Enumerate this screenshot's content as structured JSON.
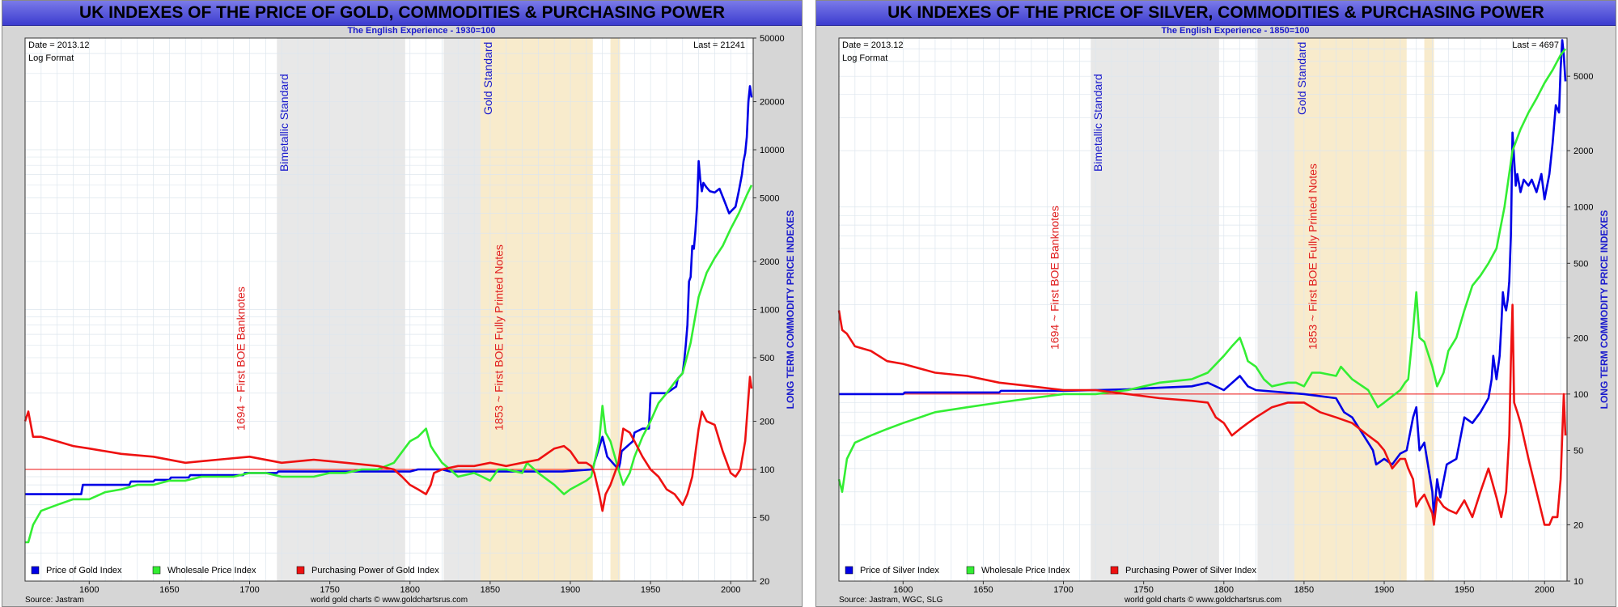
{
  "left": {
    "title": "UK INDEXES OF THE PRICE OF GOLD, COMMODITIES & PURCHASING POWER",
    "subtitle": "The English Experience - 1930=100",
    "date_label": "Date = 2013.12",
    "format_label": "Log Format",
    "last_label": "Last = 21241",
    "ylabel": "LONG TERM COMMODITY PRICE INDEXES",
    "source": "Source: Jastram",
    "credit": "world gold charts © www.goldchartsrus.com",
    "annotations": {
      "bimetallic": "Bimetallic Standard",
      "gold_standard": "Gold Standard",
      "banknotes": "1694 ~ First BOE Banknotes",
      "printed_notes": "1853 ~ First BOE Fully Printed Notes"
    },
    "legend": [
      "Price of Gold Index",
      "Wholesale Price Index",
      "Purchasing Power of Gold Index"
    ]
  },
  "right": {
    "title": "UK INDEXES OF THE PRICE OF SILVER, COMMODITIES & PURCHASING POWER",
    "subtitle": "The English Experience - 1850=100",
    "date_label": "Date = 2013.12",
    "format_label": "Log Format",
    "last_label": "Last = 4697",
    "ylabel": "LONG TERM COMMODITY PRICE INDEXES",
    "source": "Source: Jastram, WGC, SLG",
    "credit": "world gold charts © www.goldchartsrus.com",
    "annotations": {
      "bimetallic": "Bimetallic Standard",
      "gold_standard": "Gold Standard",
      "banknotes": "1694 ~ First BOE Banknotes",
      "printed_notes": "1853 ~ First BOE Fully Printed Notes"
    },
    "legend": [
      "Price of Silver Index",
      "Wholesale Price Index",
      "Purchasing Power of Silver Index"
    ]
  },
  "colors": {
    "gold_or_silver": "#0000e6",
    "wholesale": "#33ee33",
    "purchasing_power": "#ee1111",
    "reference_line": "#ee1111",
    "band_gray": "#e8e8e8",
    "band_tan": "#f8ebcc",
    "title_bar": "#5c5cdc"
  },
  "chart_data": [
    {
      "type": "line",
      "log_scale": true,
      "xlim": [
        1560,
        2014
      ],
      "ylim": [
        20,
        50000
      ],
      "x_ticks": [
        1600,
        1650,
        1700,
        1750,
        1800,
        1850,
        1900,
        1950,
        2000
      ],
      "y_ticks": [
        20,
        50,
        100,
        200,
        500,
        1000,
        2000,
        5000,
        10000,
        20000,
        50000
      ],
      "reference_line": 100,
      "bands": [
        {
          "label": "Bimetallic Standard",
          "from": 1717,
          "to": 1797,
          "color": "gray"
        },
        {
          "label": "",
          "from": 1821,
          "to": 1844,
          "color": "gray"
        },
        {
          "label": "Gold Standard",
          "from": 1844,
          "to": 1914,
          "color": "tan"
        },
        {
          "label": "",
          "from": 1925,
          "to": 1931,
          "color": "tan"
        }
      ],
      "series": [
        {
          "name": "Price of Gold Index",
          "color": "blue",
          "x": [
            1560,
            1595,
            1596,
            1625,
            1626,
            1640,
            1641,
            1650,
            1651,
            1662,
            1663,
            1696,
            1697,
            1717,
            1718,
            1800,
            1805,
            1815,
            1820,
            1825,
            1895,
            1914,
            1915,
            1920,
            1923,
            1930,
            1931,
            1932,
            1939,
            1940,
            1945,
            1949,
            1950,
            1960,
            1966,
            1967,
            1970,
            1971,
            1972,
            1973,
            1974,
            1975,
            1976,
            1977,
            1978,
            1979,
            1980,
            1981,
            1982,
            1983,
            1985,
            1987,
            1990,
            1993,
            1996,
            1999,
            2001,
            2003,
            2005,
            2007,
            2008,
            2009,
            2010,
            2011,
            2012,
            2013
          ],
          "y": [
            70,
            70,
            80,
            80,
            84,
            84,
            86,
            86,
            89,
            89,
            92,
            92,
            95,
            95,
            97,
            97,
            100,
            100,
            100,
            97,
            97,
            100,
            110,
            160,
            120,
            100,
            110,
            130,
            150,
            170,
            180,
            180,
            300,
            300,
            330,
            370,
            400,
            480,
            600,
            800,
            1500,
            1600,
            2500,
            2400,
            3100,
            4400,
            8500,
            6500,
            5500,
            6200,
            5800,
            5500,
            5400,
            5700,
            4800,
            4000,
            4200,
            4400,
            5500,
            7000,
            8500,
            9500,
            12000,
            20000,
            25000,
            21241
          ]
        },
        {
          "name": "Wholesale Price Index",
          "color": "green",
          "x": [
            1560,
            1562,
            1565,
            1570,
            1580,
            1590,
            1600,
            1610,
            1620,
            1630,
            1640,
            1650,
            1660,
            1670,
            1680,
            1690,
            1700,
            1710,
            1720,
            1730,
            1740,
            1750,
            1760,
            1770,
            1780,
            1790,
            1800,
            1805,
            1810,
            1813,
            1815,
            1820,
            1825,
            1830,
            1840,
            1845,
            1850,
            1855,
            1860,
            1870,
            1873,
            1880,
            1890,
            1896,
            1900,
            1910,
            1913,
            1915,
            1918,
            1920,
            1922,
            1925,
            1930,
            1933,
            1937,
            1940,
            1945,
            1950,
            1955,
            1960,
            1965,
            1970,
            1975,
            1980,
            1985,
            1990,
            1995,
            2000,
            2005,
            2010,
            2013
          ],
          "y": [
            35,
            35,
            45,
            55,
            60,
            65,
            65,
            72,
            75,
            80,
            80,
            85,
            85,
            90,
            90,
            90,
            95,
            95,
            90,
            90,
            90,
            95,
            95,
            100,
            100,
            110,
            150,
            160,
            180,
            140,
            130,
            110,
            100,
            90,
            95,
            90,
            85,
            100,
            100,
            95,
            110,
            95,
            80,
            70,
            75,
            85,
            90,
            110,
            150,
            250,
            170,
            150,
            100,
            80,
            95,
            120,
            160,
            200,
            260,
            300,
            350,
            400,
            620,
            1200,
            1700,
            2100,
            2500,
            3200,
            4000,
            5200,
            6000
          ]
        },
        {
          "name": "Purchasing Power of Gold Index",
          "color": "red",
          "x": [
            1560,
            1562,
            1565,
            1570,
            1580,
            1590,
            1600,
            1620,
            1640,
            1660,
            1680,
            1700,
            1720,
            1740,
            1760,
            1780,
            1790,
            1795,
            1800,
            1805,
            1810,
            1813,
            1815,
            1820,
            1830,
            1840,
            1850,
            1860,
            1870,
            1880,
            1890,
            1896,
            1900,
            1905,
            1910,
            1913,
            1915,
            1918,
            1920,
            1922,
            1925,
            1930,
            1933,
            1937,
            1940,
            1945,
            1950,
            1955,
            1960,
            1965,
            1970,
            1973,
            1976,
            1980,
            1982,
            1985,
            1990,
            1995,
            2000,
            2003,
            2006,
            2009,
            2011,
            2012,
            2013
          ],
          "y": [
            200,
            230,
            160,
            160,
            150,
            140,
            135,
            125,
            120,
            110,
            115,
            120,
            110,
            115,
            110,
            105,
            100,
            90,
            80,
            75,
            70,
            80,
            95,
            100,
            105,
            105,
            110,
            105,
            110,
            115,
            135,
            140,
            130,
            110,
            110,
            105,
            95,
            70,
            55,
            70,
            80,
            110,
            180,
            170,
            150,
            120,
            100,
            90,
            75,
            70,
            60,
            70,
            90,
            180,
            230,
            200,
            190,
            130,
            95,
            90,
            100,
            150,
            280,
            380,
            320
          ]
        }
      ]
    },
    {
      "type": "line",
      "log_scale": true,
      "xlim": [
        1560,
        2014
      ],
      "ylim": [
        10,
        8000
      ],
      "x_ticks": [
        1600,
        1650,
        1700,
        1750,
        1800,
        1850,
        1900,
        1950,
        2000
      ],
      "y_ticks": [
        10,
        20,
        50,
        100,
        200,
        500,
        1000,
        2000,
        5000
      ],
      "reference_line": 100,
      "bands": [
        {
          "label": "Bimetallic Standard",
          "from": 1717,
          "to": 1797,
          "color": "gray"
        },
        {
          "label": "",
          "from": 1821,
          "to": 1844,
          "color": "gray"
        },
        {
          "label": "Gold Standard",
          "from": 1844,
          "to": 1914,
          "color": "tan"
        },
        {
          "label": "",
          "from": 1925,
          "to": 1931,
          "color": "tan"
        }
      ],
      "series": [
        {
          "name": "Price of Silver Index",
          "color": "blue",
          "x": [
            1560,
            1600,
            1601,
            1660,
            1661,
            1700,
            1720,
            1740,
            1760,
            1780,
            1790,
            1800,
            1810,
            1815,
            1820,
            1850,
            1870,
            1875,
            1880,
            1890,
            1893,
            1895,
            1900,
            1905,
            1910,
            1914,
            1918,
            1920,
            1922,
            1925,
            1930,
            1931,
            1933,
            1935,
            1939,
            1945,
            1950,
            1955,
            1960,
            1965,
            1967,
            1968,
            1970,
            1972,
            1973,
            1974,
            1975,
            1976,
            1977,
            1978,
            1979,
            1980,
            1981,
            1982,
            1983,
            1985,
            1987,
            1990,
            1992,
            1995,
            1998,
            2000,
            2003,
            2005,
            2007,
            2009,
            2010,
            2011,
            2012,
            2013
          ],
          "y": [
            100,
            100,
            102,
            102,
            104,
            104,
            105,
            106,
            108,
            110,
            115,
            105,
            125,
            110,
            105,
            100,
            95,
            80,
            75,
            55,
            50,
            42,
            45,
            42,
            48,
            50,
            75,
            85,
            50,
            55,
            30,
            22,
            35,
            28,
            42,
            45,
            75,
            70,
            80,
            95,
            120,
            160,
            120,
            160,
            230,
            350,
            300,
            280,
            320,
            400,
            700,
            2500,
            1800,
            1300,
            1500,
            1200,
            1400,
            1300,
            1400,
            1200,
            1500,
            1100,
            1500,
            2200,
            3500,
            3200,
            5500,
            7800,
            6500,
            4697
          ]
        },
        {
          "name": "Wholesale Price Index",
          "color": "green",
          "x": [
            1560,
            1562,
            1565,
            1570,
            1580,
            1590,
            1600,
            1620,
            1640,
            1660,
            1680,
            1700,
            1720,
            1740,
            1760,
            1780,
            1790,
            1800,
            1805,
            1810,
            1813,
            1815,
            1820,
            1825,
            1830,
            1840,
            1845,
            1850,
            1855,
            1860,
            1870,
            1873,
            1880,
            1890,
            1896,
            1900,
            1910,
            1913,
            1915,
            1918,
            1920,
            1922,
            1925,
            1930,
            1933,
            1937,
            1940,
            1945,
            1950,
            1955,
            1960,
            1965,
            1970,
            1975,
            1980,
            1985,
            1990,
            1995,
            2000,
            2005,
            2010,
            2013
          ],
          "y": [
            35,
            30,
            45,
            55,
            60,
            65,
            70,
            80,
            85,
            90,
            95,
            100,
            100,
            105,
            115,
            120,
            130,
            160,
            180,
            200,
            170,
            150,
            140,
            120,
            110,
            115,
            115,
            110,
            130,
            130,
            125,
            140,
            120,
            105,
            85,
            90,
            105,
            115,
            120,
            220,
            350,
            200,
            190,
            140,
            110,
            130,
            170,
            200,
            280,
            380,
            430,
            500,
            600,
            1000,
            2000,
            2600,
            3200,
            3800,
            4600,
            5400,
            6500,
            7000
          ]
        },
        {
          "name": "Purchasing Power of Silver Index",
          "color": "red",
          "x": [
            1560,
            1562,
            1565,
            1570,
            1580,
            1590,
            1600,
            1620,
            1640,
            1660,
            1680,
            1700,
            1720,
            1740,
            1760,
            1780,
            1790,
            1795,
            1800,
            1805,
            1810,
            1815,
            1820,
            1830,
            1840,
            1850,
            1860,
            1870,
            1880,
            1890,
            1896,
            1900,
            1905,
            1910,
            1913,
            1915,
            1918,
            1920,
            1922,
            1925,
            1930,
            1931,
            1933,
            1937,
            1940,
            1945,
            1950,
            1955,
            1960,
            1965,
            1970,
            1973,
            1976,
            1978,
            1979,
            1980,
            1981,
            1983,
            1985,
            1990,
            1995,
            2000,
            2003,
            2005,
            2008,
            2010,
            2011,
            2012,
            2013
          ],
          "y": [
            280,
            220,
            210,
            180,
            170,
            150,
            145,
            130,
            125,
            115,
            110,
            105,
            105,
            100,
            95,
            92,
            90,
            75,
            70,
            60,
            65,
            70,
            75,
            85,
            90,
            90,
            80,
            75,
            70,
            60,
            55,
            50,
            40,
            45,
            45,
            40,
            35,
            25,
            27,
            29,
            23,
            20,
            28,
            25,
            24,
            23,
            27,
            22,
            30,
            40,
            28,
            22,
            30,
            60,
            150,
            300,
            90,
            80,
            70,
            45,
            30,
            20,
            20,
            22,
            22,
            35,
            60,
            100,
            60
          ]
        }
      ]
    }
  ]
}
